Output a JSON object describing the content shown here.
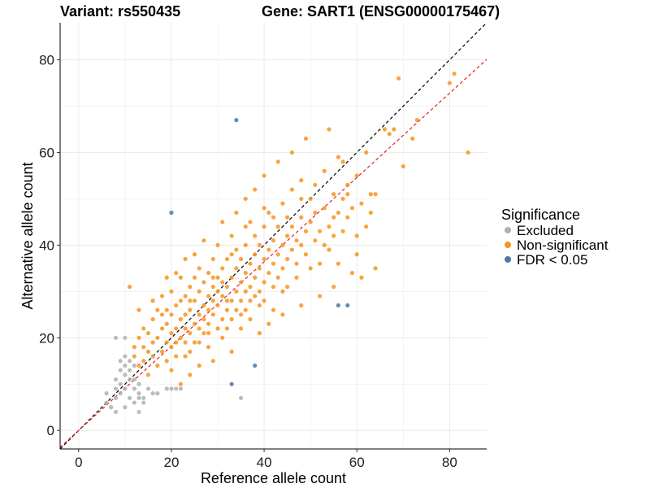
{
  "chart_data": {
    "type": "scatter",
    "title_variant": "Variant: rs550435",
    "title_gene": "Gene: SART1 (ENSG00000175467)",
    "xlabel": "Reference allele count",
    "ylabel": "Alternative allele count",
    "xlim": [
      -4,
      88
    ],
    "ylim": [
      -4,
      88
    ],
    "x_ticks": [
      0,
      20,
      40,
      60,
      80
    ],
    "y_ticks": [
      0,
      20,
      40,
      60,
      80
    ],
    "grid": true,
    "legend": {
      "title": "Significance",
      "placement": "right",
      "entries": [
        {
          "label": "Excluded",
          "color": "#b0b0b0"
        },
        {
          "label": "Non-significant",
          "color": "#f7941d"
        },
        {
          "label": "FDR < 0.05",
          "color": "#4a78a8"
        }
      ]
    },
    "reference_lines": [
      {
        "type": "identity",
        "slope": 1.0,
        "intercept": 0,
        "color": "#000000",
        "style": "dashed"
      },
      {
        "type": "fit",
        "slope": 0.91,
        "intercept": 0,
        "color": "#e8201c",
        "style": "dashed"
      }
    ],
    "series": [
      {
        "name": "Excluded",
        "color": "#b0b0b0",
        "points": [
          [
            6,
            6
          ],
          [
            6,
            8
          ],
          [
            7,
            5
          ],
          [
            8,
            4
          ],
          [
            8,
            7
          ],
          [
            8,
            9
          ],
          [
            8,
            11
          ],
          [
            8,
            20
          ],
          [
            9,
            8
          ],
          [
            9,
            10
          ],
          [
            9,
            13
          ],
          [
            9,
            15
          ],
          [
            10,
            5
          ],
          [
            10,
            9
          ],
          [
            10,
            12
          ],
          [
            10,
            14
          ],
          [
            10,
            16
          ],
          [
            10,
            20
          ],
          [
            11,
            7
          ],
          [
            11,
            11
          ],
          [
            11,
            13
          ],
          [
            11,
            15
          ],
          [
            12,
            6
          ],
          [
            12,
            9
          ],
          [
            12,
            11
          ],
          [
            12,
            14
          ],
          [
            13,
            4
          ],
          [
            13,
            7
          ],
          [
            13,
            8
          ],
          [
            13,
            10
          ],
          [
            14,
            6
          ],
          [
            14,
            7
          ],
          [
            15,
            9
          ],
          [
            16,
            8
          ],
          [
            17,
            8
          ],
          [
            19,
            9
          ],
          [
            20,
            9
          ],
          [
            21,
            9
          ],
          [
            22,
            9
          ],
          [
            35,
            7
          ]
        ]
      },
      {
        "name": "Non-significant",
        "color": "#f7941d",
        "points": [
          [
            12,
            18
          ],
          [
            13,
            20
          ],
          [
            14,
            22
          ],
          [
            15,
            17
          ],
          [
            15,
            21
          ],
          [
            16,
            24
          ],
          [
            16,
            19
          ],
          [
            17,
            20
          ],
          [
            17,
            26
          ],
          [
            18,
            22
          ],
          [
            18,
            17
          ],
          [
            18,
            29
          ],
          [
            19,
            23
          ],
          [
            19,
            19
          ],
          [
            19,
            26
          ],
          [
            20,
            21
          ],
          [
            20,
            25
          ],
          [
            20,
            18
          ],
          [
            20,
            30
          ],
          [
            21,
            22
          ],
          [
            21,
            27
          ],
          [
            21,
            16
          ],
          [
            22,
            24
          ],
          [
            22,
            20
          ],
          [
            22,
            28
          ],
          [
            22,
            33
          ],
          [
            23,
            19
          ],
          [
            23,
            25
          ],
          [
            23,
            29
          ],
          [
            23,
            22
          ],
          [
            24,
            26
          ],
          [
            24,
            21
          ],
          [
            24,
            31
          ],
          [
            24,
            17
          ],
          [
            25,
            23
          ],
          [
            25,
            28
          ],
          [
            25,
            33
          ],
          [
            25,
            19
          ],
          [
            26,
            25
          ],
          [
            26,
            30
          ],
          [
            26,
            22
          ],
          [
            26,
            35
          ],
          [
            27,
            27
          ],
          [
            27,
            21
          ],
          [
            27,
            32
          ],
          [
            27,
            24
          ],
          [
            28,
            29
          ],
          [
            28,
            23
          ],
          [
            28,
            34
          ],
          [
            28,
            26
          ],
          [
            28,
            18
          ],
          [
            29,
            25
          ],
          [
            29,
            31
          ],
          [
            29,
            28
          ],
          [
            29,
            37
          ],
          [
            30,
            27
          ],
          [
            30,
            22
          ],
          [
            30,
            33
          ],
          [
            30,
            30
          ],
          [
            30,
            40
          ],
          [
            31,
            29
          ],
          [
            31,
            24
          ],
          [
            31,
            35
          ],
          [
            31,
            20
          ],
          [
            32,
            31
          ],
          [
            32,
            26
          ],
          [
            32,
            37
          ],
          [
            32,
            28
          ],
          [
            33,
            28
          ],
          [
            33,
            33
          ],
          [
            33,
            24
          ],
          [
            33,
            42
          ],
          [
            34,
            30
          ],
          [
            34,
            35
          ],
          [
            34,
            26
          ],
          [
            34,
            39
          ],
          [
            35,
            32
          ],
          [
            35,
            28
          ],
          [
            35,
            37
          ],
          [
            35,
            22
          ],
          [
            36,
            34
          ],
          [
            36,
            30
          ],
          [
            36,
            40
          ],
          [
            36,
            26
          ],
          [
            37,
            31
          ],
          [
            37,
            36
          ],
          [
            37,
            45
          ],
          [
            37,
            28
          ],
          [
            38,
            33
          ],
          [
            38,
            38
          ],
          [
            38,
            29
          ],
          [
            38,
            42
          ],
          [
            39,
            35
          ],
          [
            39,
            30
          ],
          [
            39,
            40
          ],
          [
            40,
            37
          ],
          [
            40,
            32
          ],
          [
            40,
            44
          ],
          [
            40,
            28
          ],
          [
            41,
            39
          ],
          [
            41,
            34
          ],
          [
            41,
            47
          ],
          [
            42,
            36
          ],
          [
            42,
            41
          ],
          [
            42,
            31
          ],
          [
            43,
            38
          ],
          [
            43,
            44
          ],
          [
            43,
            33
          ],
          [
            44,
            40
          ],
          [
            44,
            35
          ],
          [
            44,
            49
          ],
          [
            45,
            42
          ],
          [
            45,
            37
          ],
          [
            45,
            31
          ],
          [
            46,
            44
          ],
          [
            46,
            39
          ],
          [
            46,
            52
          ],
          [
            47,
            41
          ],
          [
            47,
            36
          ],
          [
            48,
            46
          ],
          [
            48,
            40
          ],
          [
            48,
            54
          ],
          [
            49,
            43
          ],
          [
            49,
            38
          ],
          [
            50,
            45
          ],
          [
            50,
            50
          ],
          [
            51,
            41
          ],
          [
            51,
            47
          ],
          [
            52,
            43
          ],
          [
            52,
            36
          ],
          [
            53,
            48
          ],
          [
            53,
            56
          ],
          [
            54,
            44
          ],
          [
            54,
            39
          ],
          [
            55,
            51
          ],
          [
            55,
            42
          ],
          [
            56,
            47
          ],
          [
            56,
            59
          ],
          [
            57,
            50
          ],
          [
            57,
            43
          ],
          [
            58,
            53
          ],
          [
            58,
            46
          ],
          [
            59,
            48
          ],
          [
            60,
            55
          ],
          [
            60,
            42
          ],
          [
            61,
            49
          ],
          [
            62,
            44
          ],
          [
            62,
            60
          ],
          [
            63,
            51
          ],
          [
            64,
            51
          ],
          [
            11,
            31
          ],
          [
            13,
            26
          ],
          [
            14,
            15
          ],
          [
            15,
            12
          ],
          [
            16,
            28
          ],
          [
            17,
            14
          ],
          [
            19,
            33
          ],
          [
            20,
            13
          ],
          [
            21,
            34
          ],
          [
            22,
            10
          ],
          [
            23,
            37
          ],
          [
            24,
            12
          ],
          [
            25,
            38
          ],
          [
            26,
            14
          ],
          [
            27,
            41
          ],
          [
            29,
            15
          ],
          [
            31,
            45
          ],
          [
            33,
            17
          ],
          [
            34,
            47
          ],
          [
            36,
            50
          ],
          [
            38,
            52
          ],
          [
            39,
            21
          ],
          [
            40,
            55
          ],
          [
            41,
            23
          ],
          [
            43,
            58
          ],
          [
            44,
            25
          ],
          [
            46,
            60
          ],
          [
            48,
            27
          ],
          [
            49,
            63
          ],
          [
            52,
            29
          ],
          [
            54,
            65
          ],
          [
            55,
            31
          ],
          [
            57,
            58
          ],
          [
            59,
            34
          ],
          [
            61,
            33
          ],
          [
            64,
            35
          ],
          [
            66,
            65
          ],
          [
            67,
            64
          ],
          [
            68,
            65
          ],
          [
            69,
            76
          ],
          [
            70,
            57
          ],
          [
            72,
            63
          ],
          [
            73,
            67
          ],
          [
            80,
            75
          ],
          [
            81,
            77
          ],
          [
            84,
            60
          ],
          [
            12,
            16
          ],
          [
            13,
            14
          ],
          [
            14,
            18
          ],
          [
            16,
            16
          ],
          [
            18,
            25
          ],
          [
            19,
            15
          ],
          [
            21,
            19
          ],
          [
            23,
            16
          ],
          [
            24,
            28
          ],
          [
            26,
            19
          ],
          [
            28,
            21
          ],
          [
            29,
            33
          ],
          [
            31,
            32
          ],
          [
            32,
            22
          ],
          [
            33,
            38
          ],
          [
            35,
            25
          ],
          [
            36,
            44
          ],
          [
            37,
            24
          ],
          [
            39,
            27
          ],
          [
            40,
            48
          ],
          [
            42,
            26
          ],
          [
            42,
            46
          ],
          [
            44,
            30
          ],
          [
            45,
            46
          ],
          [
            47,
            33
          ],
          [
            48,
            50
          ],
          [
            50,
            35
          ],
          [
            51,
            53
          ],
          [
            53,
            40
          ],
          [
            55,
            46
          ],
          [
            56,
            36
          ],
          [
            58,
            51
          ],
          [
            60,
            38
          ],
          [
            63,
            47
          ]
        ]
      },
      {
        "name": "FDR < 0.05",
        "color": "#4a78a8",
        "points": [
          [
            34,
            67
          ],
          [
            20,
            47
          ],
          [
            56,
            27
          ],
          [
            58,
            27
          ],
          [
            33,
            10
          ],
          [
            38,
            14
          ]
        ]
      }
    ]
  }
}
